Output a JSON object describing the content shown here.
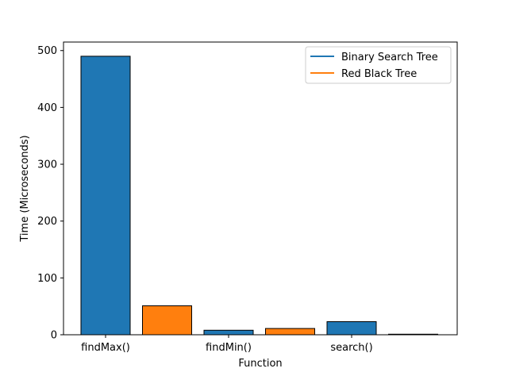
{
  "chart_data": {
    "type": "bar",
    "title": "",
    "xlabel": "Function",
    "ylabel": "Time (Microseconds)",
    "ylim": [
      0,
      515
    ],
    "yticks": [
      0,
      100,
      200,
      300,
      400,
      500
    ],
    "categories": [
      "findMax()",
      "findMin()",
      "search()"
    ],
    "series": [
      {
        "name": "Binary Search Tree",
        "color": "#1f77b4",
        "values": [
          490,
          8,
          23
        ]
      },
      {
        "name": "Red Black Tree",
        "color": "#ff7f0e",
        "values": [
          51,
          11,
          1
        ]
      }
    ],
    "legend_position": "top-right",
    "grid": false,
    "bar_edge_color": "#000000"
  }
}
